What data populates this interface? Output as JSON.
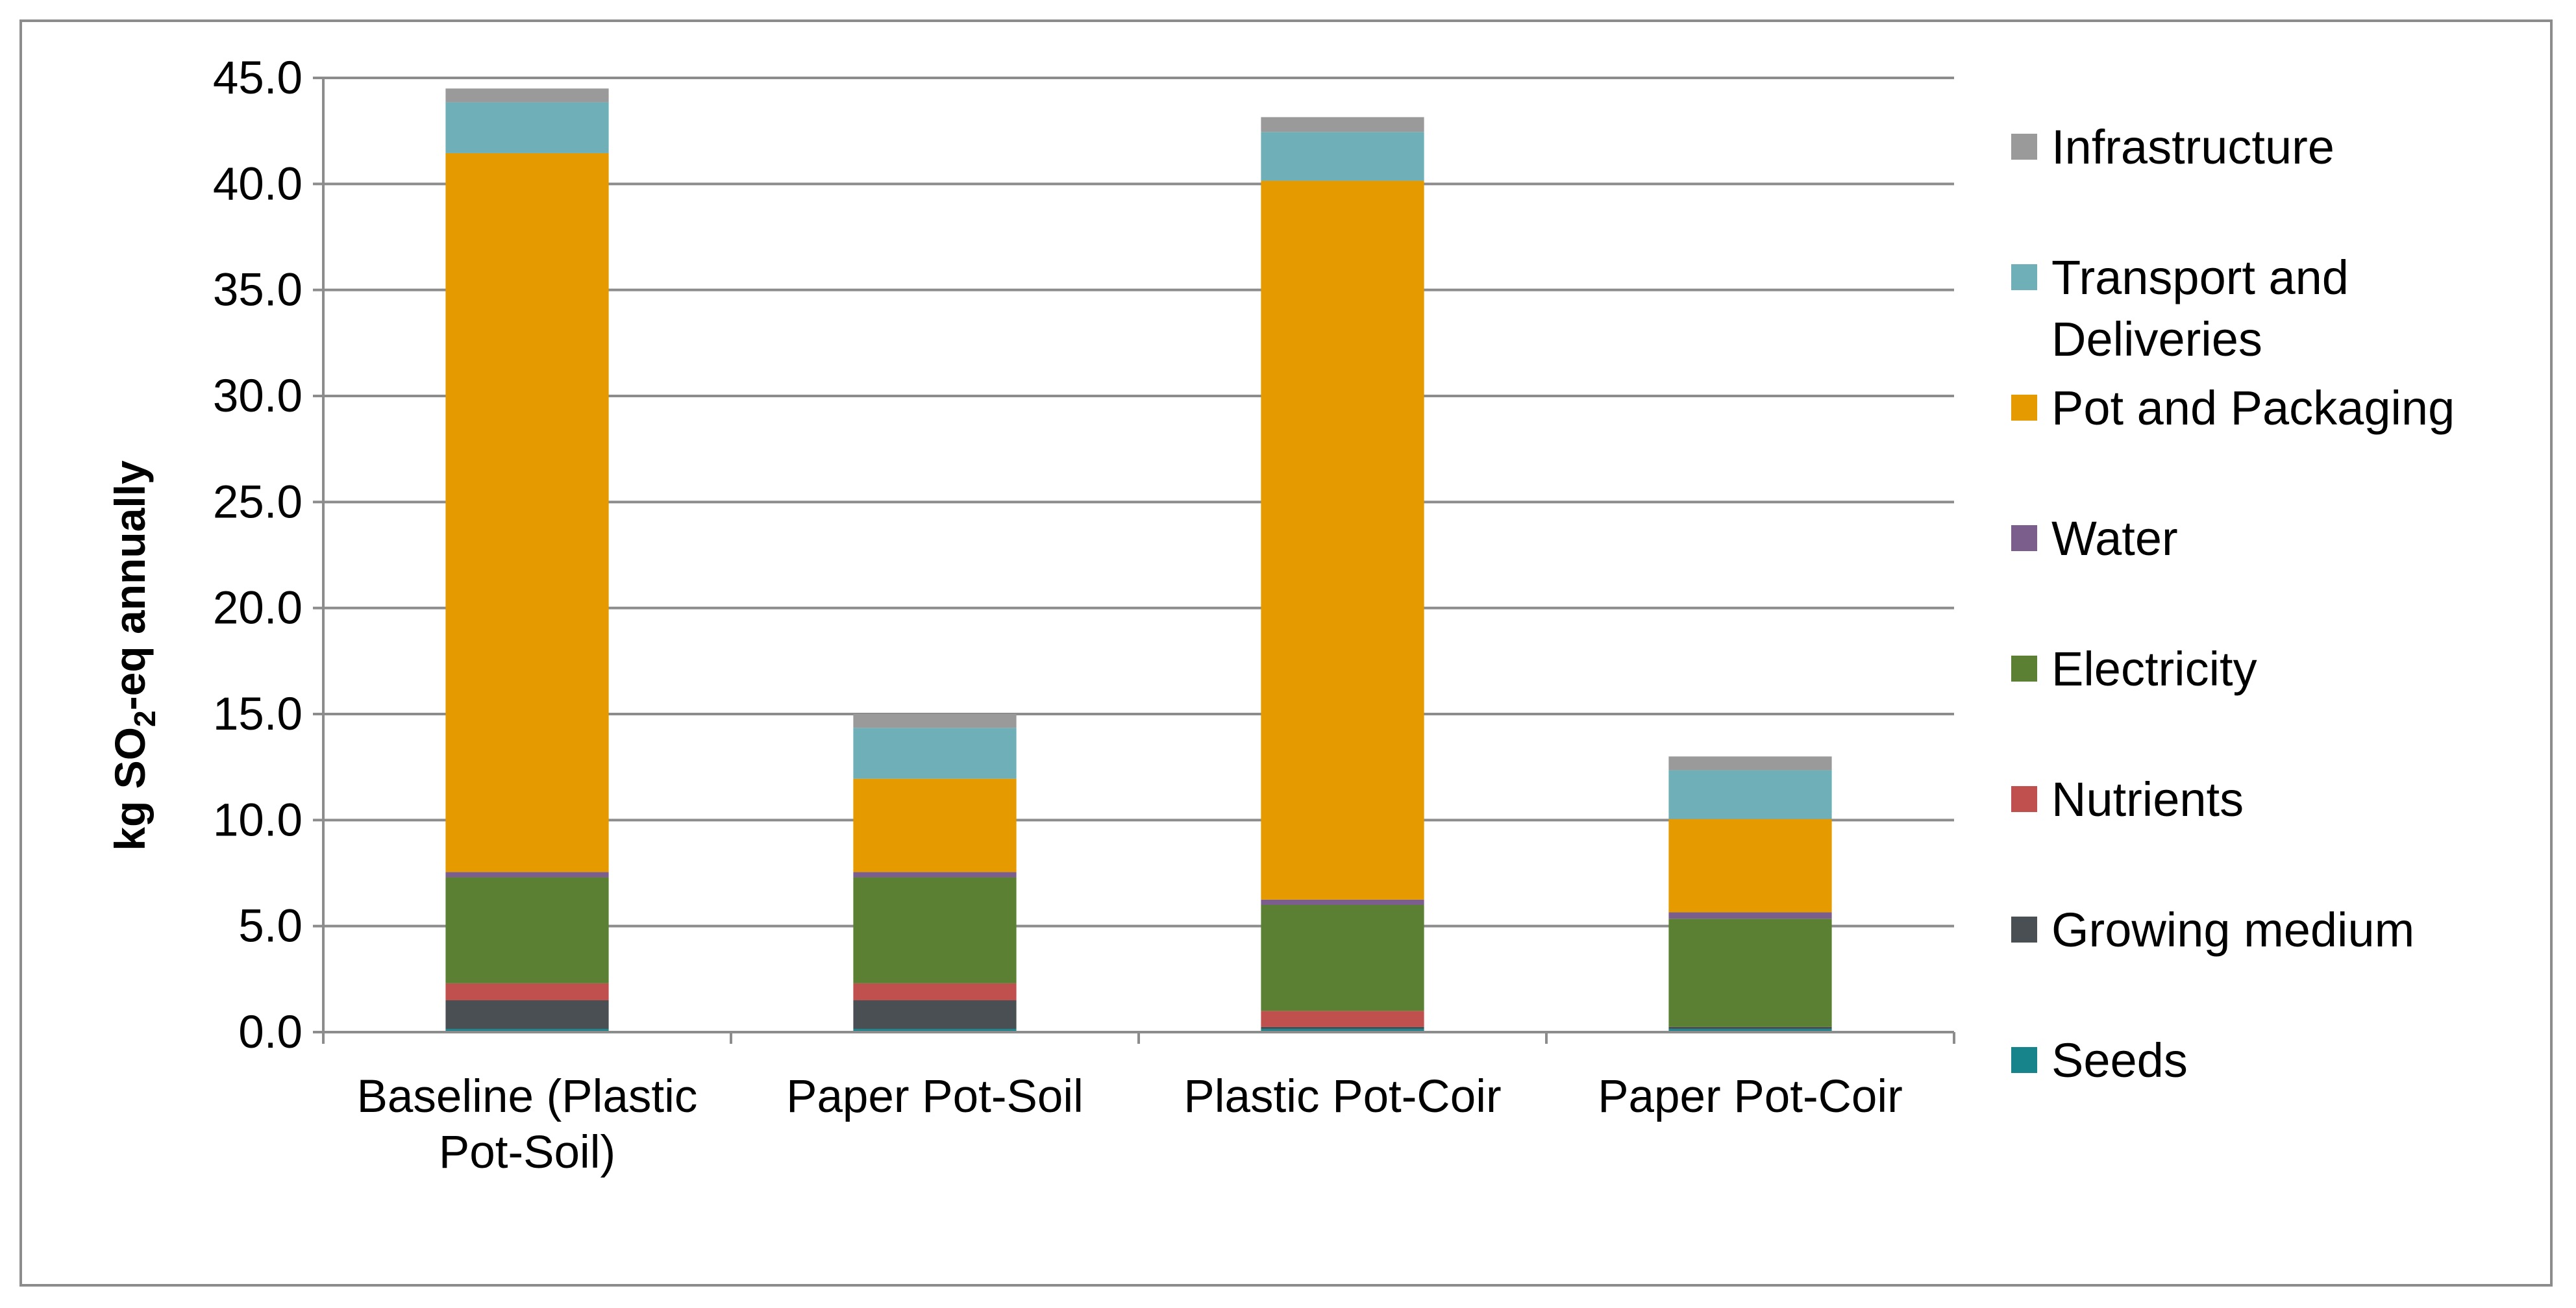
{
  "chart_data": {
    "type": "bar",
    "stacked": true,
    "ylabel_parts": {
      "prefix": "kg SO",
      "subscript": "2",
      "suffix": "-eq annually"
    },
    "ylim": [
      0,
      45
    ],
    "yticks": [
      "0.0",
      "5.0",
      "10.0",
      "15.0",
      "20.0",
      "25.0",
      "30.0",
      "35.0",
      "40.0",
      "45.0"
    ],
    "grid": true,
    "legend_position": "right",
    "categories": [
      [
        "Baseline (Plastic",
        "Pot-Soil)"
      ],
      [
        "Paper Pot-Soil"
      ],
      [
        "Plastic Pot-Coir"
      ],
      [
        "Paper Pot-Coir"
      ]
    ],
    "series": [
      {
        "name": "Seeds",
        "color": "#17848c",
        "values": [
          0.15,
          0.15,
          0.15,
          0.15
        ]
      },
      {
        "name": "Growing medium",
        "color": "#4a4f54",
        "values": [
          1.35,
          1.35,
          0.1,
          0.1
        ]
      },
      {
        "name": "Nutrients",
        "color": "#c0504d",
        "values": [
          0.8,
          0.8,
          0.75,
          0.0
        ]
      },
      {
        "name": "Electricity",
        "color": "#5b8034",
        "values": [
          5.0,
          5.0,
          5.0,
          5.1
        ]
      },
      {
        "name": "Water",
        "color": "#7b5e8c",
        "values": [
          0.25,
          0.25,
          0.25,
          0.3
        ]
      },
      {
        "name": "Pot and Packaging",
        "color": "#e59a00",
        "values": [
          33.9,
          4.4,
          33.9,
          4.4
        ]
      },
      {
        "name": "Transport and Deliveries",
        "color": "#6fafb8",
        "values": [
          2.4,
          2.4,
          2.3,
          2.3
        ]
      },
      {
        "name": "Infrastructure",
        "color": "#9a9a9a",
        "values": [
          0.65,
          0.65,
          0.7,
          0.65
        ]
      }
    ],
    "legend_entries": [
      {
        "lines": [
          "Infrastructure"
        ],
        "color": "#9a9a9a"
      },
      {
        "lines": [
          "Transport and",
          "Deliveries"
        ],
        "color": "#6fafb8"
      },
      {
        "lines": [
          "Pot and Packaging"
        ],
        "color": "#e59a00"
      },
      {
        "lines": [
          "Water"
        ],
        "color": "#7b5e8c"
      },
      {
        "lines": [
          "Electricity"
        ],
        "color": "#5b8034"
      },
      {
        "lines": [
          "Nutrients"
        ],
        "color": "#c0504d"
      },
      {
        "lines": [
          "Growing medium"
        ],
        "color": "#4a4f54"
      },
      {
        "lines": [
          "Seeds"
        ],
        "color": "#17848c"
      }
    ],
    "colors": {
      "grid": "#8c8c8c",
      "axis": "#8c8c8c",
      "frame": "#8c8c8c"
    }
  }
}
